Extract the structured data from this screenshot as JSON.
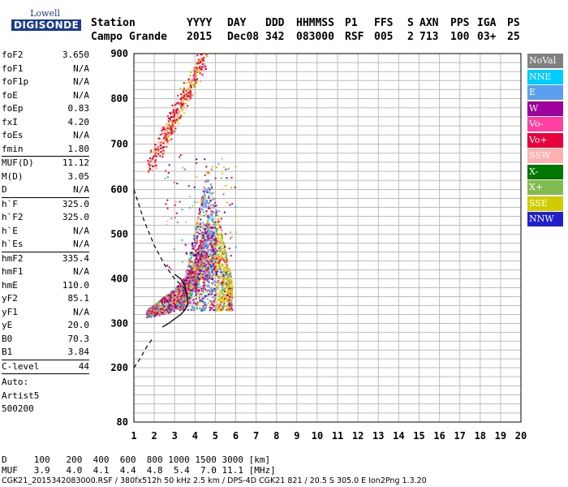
{
  "logo": {
    "line1": "Lowell",
    "line2": "DIGISONDE"
  },
  "header": {
    "labels": [
      "Station",
      "YYYY",
      "DAY",
      "DDD",
      "HHMMSS",
      "P1",
      "FFS",
      "S",
      "AXN",
      "PPS",
      "IGA",
      "PS"
    ],
    "values": [
      "Campo Grande",
      "2015",
      "Dec08",
      "342",
      "083000",
      "RSF",
      "005",
      "2",
      "713",
      "100",
      "03+",
      "25"
    ]
  },
  "params": {
    "groups": [
      [
        [
          "foF2",
          "3.650"
        ],
        [
          "foF1",
          "N/A"
        ],
        [
          "foF1p",
          "N/A"
        ],
        [
          "foE",
          "N/A"
        ],
        [
          "foEp",
          "0.83"
        ],
        [
          "fxI",
          "4.20"
        ],
        [
          "foEs",
          "N/A"
        ],
        [
          "fmin",
          "1.80"
        ]
      ],
      [
        [
          "MUF(D)",
          "11.12"
        ],
        [
          "M(D)",
          "3.05"
        ],
        [
          "D",
          "N/A"
        ]
      ],
      [
        [
          "h`F",
          "325.0"
        ],
        [
          "h`F2",
          "325.0"
        ],
        [
          "h`E",
          "N/A"
        ],
        [
          "h`Es",
          "N/A"
        ]
      ],
      [
        [
          "hmF2",
          "335.4"
        ],
        [
          "hmF1",
          "N/A"
        ],
        [
          "hmE",
          "110.0"
        ],
        [
          "yF2",
          "85.1"
        ],
        [
          "yF1",
          "N/A"
        ],
        [
          "yE",
          "20.0"
        ],
        [
          "B0",
          "70.3"
        ],
        [
          "B1",
          "3.84"
        ]
      ],
      [
        [
          "C-level",
          "44"
        ]
      ]
    ],
    "auto": [
      "Auto:",
      "Artist5",
      "500200"
    ]
  },
  "legend": [
    {
      "label": "NoVal",
      "color": "#808080"
    },
    {
      "label": "NNE",
      "color": "#00ccff"
    },
    {
      "label": "E",
      "color": "#5aa0ee"
    },
    {
      "label": "W",
      "color": "#a000a0"
    },
    {
      "label": "Vo-",
      "color": "#ff40a0"
    },
    {
      "label": "Vo+",
      "color": "#e8003c"
    },
    {
      "label": "SSW",
      "color": "#ffb0b0"
    },
    {
      "label": "X-",
      "color": "#007800"
    },
    {
      "label": "X+",
      "color": "#80bb50"
    },
    {
      "label": "SSE",
      "color": "#d0cc00"
    },
    {
      "label": "NNW",
      "color": "#2020cc"
    }
  ],
  "bottom": {
    "d_label": "D",
    "d_values": [
      "100",
      "200",
      "400",
      "600",
      "800",
      "1000",
      "1500",
      "3000"
    ],
    "d_unit": "[km]",
    "muf_label": "MUF",
    "muf_values": [
      "3.9",
      "4.0",
      "4.1",
      "4.4",
      "4.8",
      "5.4",
      "7.0",
      "11.1"
    ],
    "muf_unit": "[MHz]"
  },
  "footer": "CGK21_2015342083000.RSF / 380fx512h 50 kHz 2.5 km / DPS-4D CGK21 821 / 20.5 S 305.0 E Ion2Png 1.3.20",
  "chart_data": {
    "type": "scatter",
    "title": "",
    "xlabel": "",
    "ylabel": "",
    "xlim": [
      1,
      20
    ],
    "ylim": [
      80,
      900
    ],
    "xticks": [
      1,
      2,
      3,
      4,
      5,
      6,
      7,
      8,
      9,
      10,
      11,
      12,
      13,
      14,
      15,
      16,
      17,
      18,
      19,
      20
    ],
    "yticks": [
      80,
      200,
      300,
      400,
      500,
      600,
      700,
      800,
      900
    ],
    "grid": true,
    "legend_position": "right",
    "ordinary_trace": {
      "lower_x": [
        1.6,
        2.0,
        2.5,
        3.0,
        3.3,
        3.6,
        3.8,
        4.0,
        4.2
      ],
      "lower_y": [
        315,
        318,
        322,
        330,
        338,
        350,
        362,
        378,
        400
      ],
      "upper_x": [
        1.6,
        2.0,
        2.5,
        3.0,
        3.4,
        3.7,
        4.0,
        4.3,
        4.6,
        5.0
      ],
      "upper_y": [
        330,
        345,
        362,
        380,
        400,
        420,
        450,
        490,
        540,
        500
      ]
    },
    "vertical_cluster": {
      "x_range": [
        3.2,
        5.8
      ],
      "y_range": [
        330,
        650
      ]
    },
    "upper_echo": {
      "x_range": [
        1.8,
        4.4
      ],
      "y_range": [
        655,
        890
      ]
    },
    "profile_curve": {
      "x": [
        1.0,
        1.2,
        1.5,
        1.8,
        2.1,
        2.4,
        2.7,
        3.0,
        3.3,
        3.5,
        3.6,
        3.65
      ],
      "y": [
        200,
        215,
        240,
        262,
        280,
        292,
        300,
        310,
        320,
        330,
        338,
        345
      ],
      "top_x": [
        3.65,
        3.6,
        3.5,
        3.3,
        3.0
      ],
      "top_y": [
        345,
        365,
        385,
        400,
        410
      ]
    },
    "dashed_curve": {
      "x": [
        1.0,
        1.5,
        2.0,
        2.5,
        3.0,
        3.5
      ],
      "y": [
        600,
        530,
        475,
        432,
        400,
        378
      ]
    },
    "dashed_lower": {
      "x": [
        1.0,
        1.3,
        1.6,
        1.9
      ],
      "y": [
        200,
        220,
        245,
        265
      ]
    }
  }
}
